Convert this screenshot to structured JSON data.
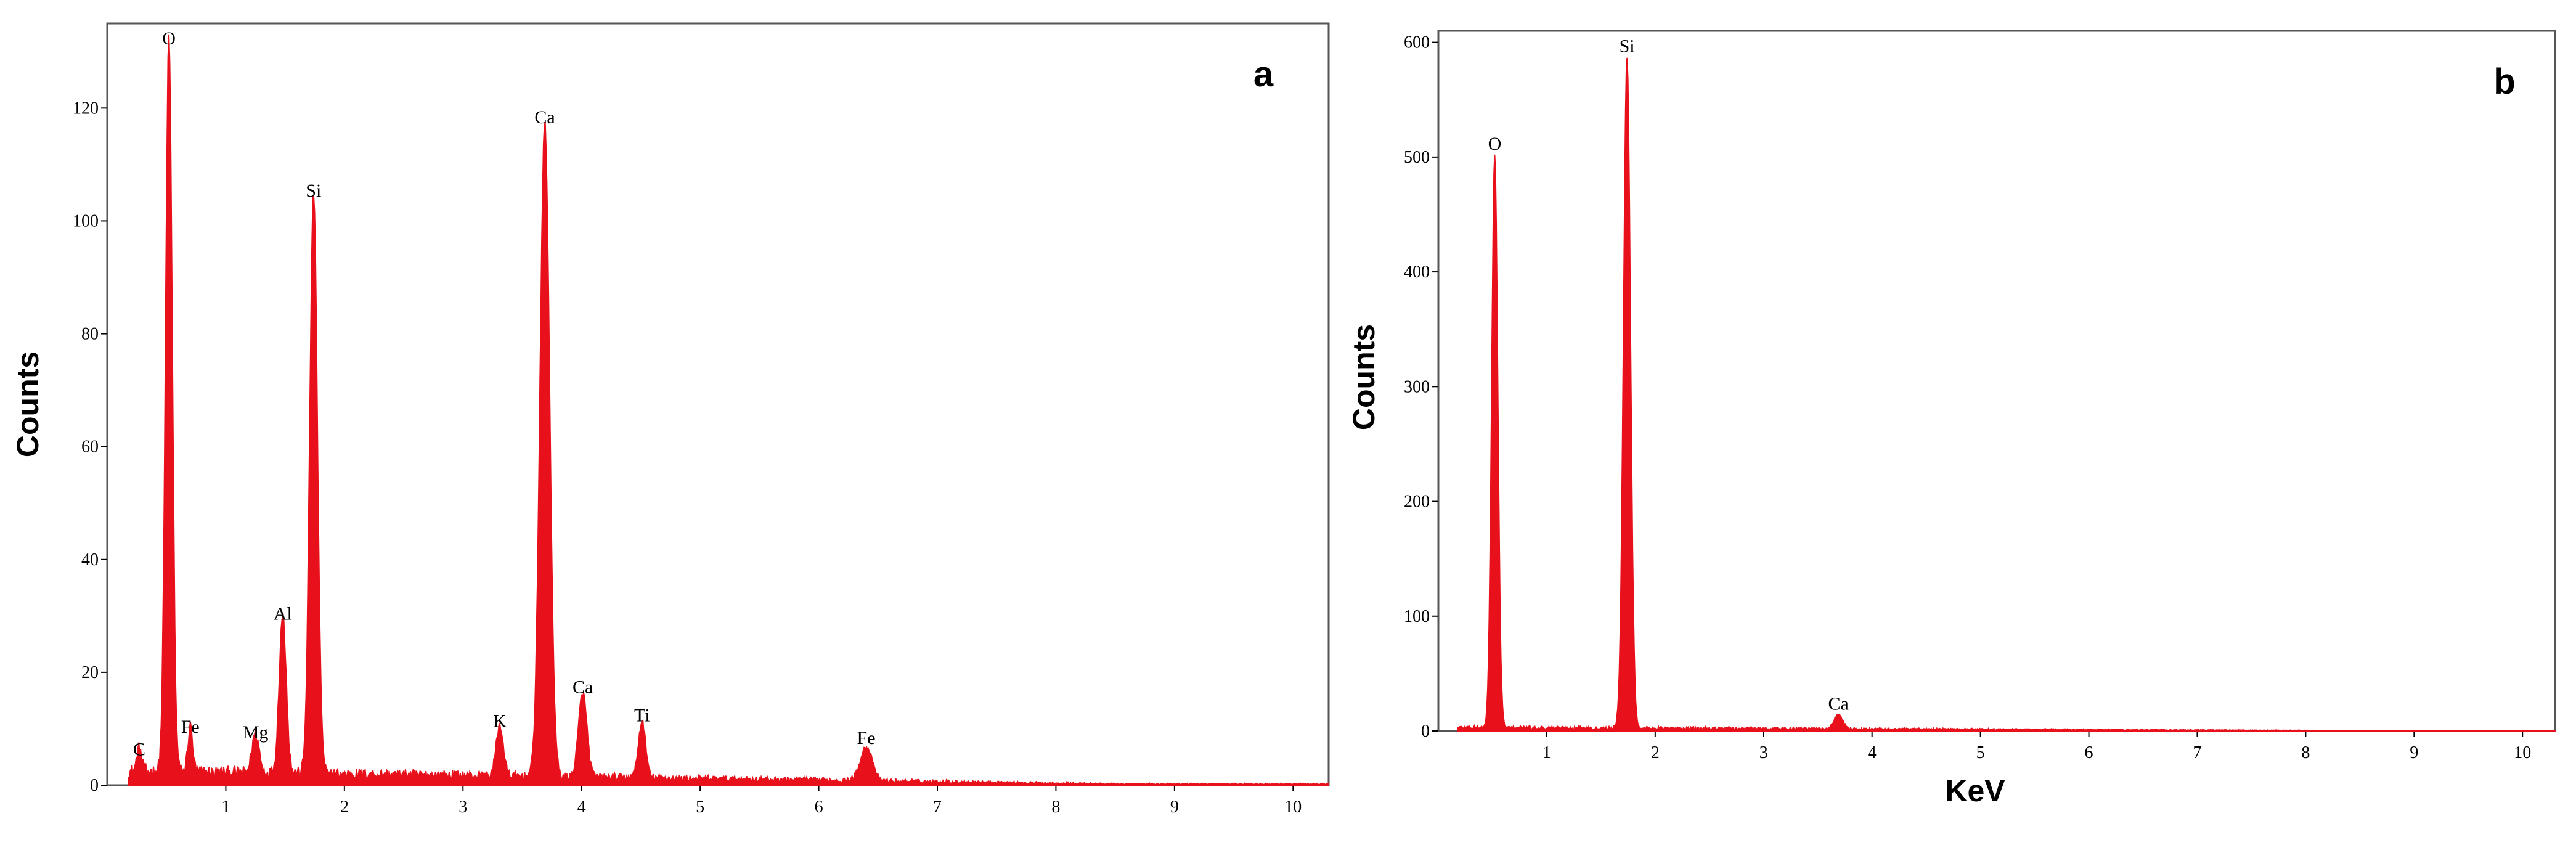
{
  "chart_data": [
    {
      "type": "area",
      "panel_label": "a",
      "ylabel": "Counts",
      "xlabel": "",
      "xlim": [
        0,
        10.3
      ],
      "ylim": [
        0,
        135
      ],
      "x_ticks": [
        1,
        2,
        3,
        4,
        5,
        6,
        7,
        8,
        9,
        10
      ],
      "y_ticks": [
        0,
        20,
        40,
        60,
        80,
        100,
        120
      ],
      "series_color": "#e8101a",
      "peaks": [
        {
          "label": "C",
          "x": 0.27,
          "y": 4,
          "w": 0.02
        },
        {
          "label": "O",
          "x": 0.52,
          "y": 130,
          "w": 0.028
        },
        {
          "label": "Fe",
          "x": 0.7,
          "y": 8,
          "w": 0.02
        },
        {
          "label": "Mg",
          "x": 1.25,
          "y": 7,
          "w": 0.03
        },
        {
          "label": "Al",
          "x": 1.48,
          "y": 28,
          "w": 0.03
        },
        {
          "label": "Si",
          "x": 1.74,
          "y": 103,
          "w": 0.032
        },
        {
          "label": "K",
          "x": 3.31,
          "y": 9,
          "w": 0.03
        },
        {
          "label": "Ca",
          "x": 3.69,
          "y": 116,
          "w": 0.04
        },
        {
          "label": "Ca",
          "x": 4.01,
          "y": 15,
          "w": 0.035
        },
        {
          "label": "Ti",
          "x": 4.51,
          "y": 10,
          "w": 0.03
        },
        {
          "label": "Fe",
          "x": 6.4,
          "y": 6,
          "w": 0.05
        }
      ]
    },
    {
      "type": "area",
      "panel_label": "b",
      "ylabel": "Counts",
      "xlabel": "KeV",
      "xlim": [
        0,
        10.3
      ],
      "ylim": [
        0,
        610
      ],
      "x_ticks": [
        1,
        2,
        3,
        4,
        5,
        6,
        7,
        8,
        9,
        10
      ],
      "y_ticks": [
        0,
        100,
        200,
        300,
        400,
        500,
        600
      ],
      "series_color": "#e8101a",
      "peaks": [
        {
          "label": "O",
          "x": 0.52,
          "y": 500,
          "w": 0.028
        },
        {
          "label": "Si",
          "x": 1.74,
          "y": 585,
          "w": 0.032
        },
        {
          "label": "Ca",
          "x": 3.69,
          "y": 12,
          "w": 0.04
        }
      ]
    }
  ]
}
